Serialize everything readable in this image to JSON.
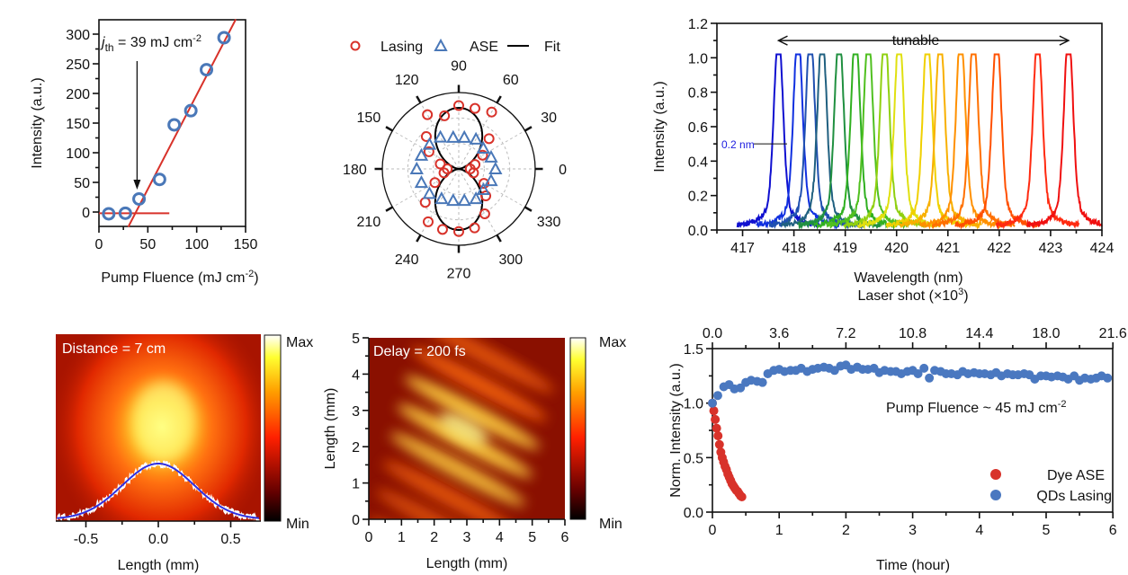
{
  "chart_data": [
    {
      "type": "scatter",
      "xlabel_main": "Pump Fluence (mJ cm",
      "xlabel_sup": "-2",
      "xlabel_end": ")",
      "ylabel": "Intensity (a.u.)",
      "xlim": [
        0,
        150
      ],
      "ylim": [
        -25,
        325
      ],
      "xticks": [
        0,
        50,
        100,
        150
      ],
      "yticks": [
        0,
        50,
        100,
        150,
        200,
        250,
        300
      ],
      "annotation": {
        "symbol": "j",
        "sub": "th",
        "text": " = 39 mJ cm",
        "sup": "-2"
      },
      "threshold": 39,
      "points": {
        "x": [
          10,
          27,
          41,
          62,
          77,
          94,
          110,
          128
        ],
        "y": [
          -3,
          -2,
          22,
          55,
          147,
          171,
          240,
          294
        ]
      },
      "fit_line": {
        "x": [
          30,
          140
        ],
        "y": [
          -25,
          325
        ]
      },
      "baseline": {
        "x": [
          0,
          72
        ],
        "y": [
          -2,
          -2
        ]
      },
      "colors": {
        "points": "#4a78b8",
        "fit": "#d8322a"
      }
    },
    {
      "type": "polar",
      "legend": [
        "Lasing",
        "ASE",
        "Fit"
      ],
      "angle_ticks": [
        0,
        30,
        60,
        90,
        120,
        150,
        180,
        210,
        240,
        270,
        300,
        330
      ],
      "lasing": {
        "angle": [
          0,
          15,
          30,
          45,
          60,
          75,
          90,
          105,
          120,
          135,
          150,
          165,
          180,
          195,
          210,
          225,
          240,
          255,
          270,
          285,
          300,
          315,
          330,
          345
        ],
        "r": [
          0.15,
          0.22,
          0.36,
          0.56,
          0.86,
          0.82,
          0.83,
          0.72,
          0.82,
          0.6,
          0.45,
          0.25,
          0.15,
          0.2,
          0.36,
          0.62,
          0.8,
          0.82,
          0.82,
          0.8,
          0.68,
          0.5,
          0.38,
          0.2
        ]
      },
      "ase": {
        "angle": [
          0,
          20,
          40,
          60,
          80,
          100,
          120,
          140,
          160,
          180,
          200,
          220,
          240,
          260,
          280,
          300,
          320,
          340
        ],
        "r": [
          0.48,
          0.45,
          0.42,
          0.45,
          0.42,
          0.42,
          0.48,
          0.5,
          0.52,
          0.55,
          0.52,
          0.5,
          0.45,
          0.42,
          0.42,
          0.45,
          0.42,
          0.45
        ]
      },
      "fit": {
        "function": "0.8 sin^2(theta)"
      },
      "colors": {
        "lasing": "#d8322a",
        "ase": "#4a78b8",
        "fit": "#000000"
      }
    },
    {
      "type": "line",
      "xlabel": "Wavelength (nm)",
      "ylabel": "Intensity (a.u.)",
      "xlim": [
        416.5,
        424
      ],
      "ylim": [
        0,
        1.2
      ],
      "xticks": [
        417,
        418,
        419,
        420,
        421,
        422,
        423,
        424
      ],
      "yticks": [
        "0.0",
        "0.2",
        "0.4",
        "0.6",
        "0.8",
        "1.0",
        "1.2"
      ],
      "annotation_tunable": "tunable",
      "annotation_width": "0.2 nm",
      "peaks": [
        417.7,
        418.08,
        418.32,
        418.55,
        418.88,
        419.2,
        419.45,
        419.77,
        420.05,
        420.6,
        420.85,
        421.25,
        421.5,
        421.95,
        422.75,
        423.35
      ],
      "fwhm_nm": 0.2,
      "colors": [
        "#1010d0",
        "#1030e0",
        "#2050b0",
        "#206080",
        "#209040",
        "#30b020",
        "#50c020",
        "#90d010",
        "#e0e010",
        "#f0d000",
        "#f8b000",
        "#ff9000",
        "#ff7000",
        "#ff5000",
        "#ff2a10",
        "#f01010"
      ]
    },
    {
      "type": "heatmap",
      "label": "Distance = 7 cm",
      "xlabel": "Length (mm)",
      "xlim": [
        -0.7,
        0.7
      ],
      "xticks": [
        "-0.5",
        "0.0",
        "0.5"
      ],
      "colorbar": {
        "max": "Max",
        "min": "Min"
      },
      "profile_fit": {
        "type": "gaussian",
        "sigma_mm": 0.25
      },
      "colors": {
        "fit": "#3030e0",
        "profile": "#ffffff"
      }
    },
    {
      "type": "heatmap",
      "label": "Delay = 200 fs",
      "xlabel": "Length (mm)",
      "ylabel": "Length (mm)",
      "xlim": [
        0,
        6
      ],
      "ylim": [
        0,
        5
      ],
      "xticks": [
        0,
        1,
        2,
        3,
        4,
        5,
        6
      ],
      "yticks": [
        0,
        1,
        2,
        3,
        4,
        5
      ],
      "colorbar": {
        "max": "Max",
        "min": "Min"
      }
    },
    {
      "type": "scatter",
      "xlabel": "Time (hour)",
      "ylabel": "Norm. Intensity (a.u.)",
      "x2label_main": "Laser shot (×10",
      "x2label_sup": "3",
      "x2label_end": ")",
      "xlim": [
        0,
        6
      ],
      "ylim": [
        0,
        1.5
      ],
      "xticks": [
        0,
        1,
        2,
        3,
        4,
        5,
        6
      ],
      "x2ticks": [
        "0.0",
        "3.6",
        "7.2",
        "10.8",
        "14.4",
        "18.0",
        "21.6"
      ],
      "yticks": [
        "0.0",
        "0.5",
        "1.0",
        "1.5"
      ],
      "annotation_main": "Pump Fluence ~ 45 mJ cm",
      "annotation_sup": "-2",
      "legend_position": "bottom-right",
      "series": [
        {
          "name": "Dye ASE",
          "color": "#d8322a",
          "x": [
            0,
            0.021,
            0.042,
            0.063,
            0.084,
            0.105,
            0.126,
            0.147,
            0.168,
            0.189,
            0.21,
            0.231,
            0.252,
            0.273,
            0.294,
            0.315,
            0.336,
            0.357,
            0.378,
            0.399,
            0.42,
            0.441
          ],
          "y": [
            1.0,
            0.93,
            0.85,
            0.77,
            0.7,
            0.62,
            0.55,
            0.5,
            0.46,
            0.42,
            0.39,
            0.35,
            0.32,
            0.29,
            0.26,
            0.24,
            0.22,
            0.2,
            0.19,
            0.17,
            0.15,
            0.14
          ]
        },
        {
          "name": "QDs Lasing",
          "color": "#4a78c0",
          "x": [
            0,
            0.08,
            0.17,
            0.25,
            0.33,
            0.42,
            0.5,
            0.58,
            0.67,
            0.75,
            0.83,
            0.92,
            1.0,
            1.08,
            1.17,
            1.25,
            1.33,
            1.42,
            1.5,
            1.58,
            1.67,
            1.75,
            1.83,
            1.92,
            2.0,
            2.08,
            2.17,
            2.25,
            2.33,
            2.42,
            2.5,
            2.58,
            2.67,
            2.75,
            2.83,
            2.92,
            3.0,
            3.08,
            3.17,
            3.25,
            3.33,
            3.42,
            3.5,
            3.58,
            3.67,
            3.75,
            3.83,
            3.92,
            4.0,
            4.08,
            4.17,
            4.25,
            4.33,
            4.42,
            4.5,
            4.58,
            4.67,
            4.75,
            4.83,
            4.92,
            5.0,
            5.08,
            5.17,
            5.25,
            5.33,
            5.42,
            5.5,
            5.58,
            5.67,
            5.75,
            5.83,
            5.92
          ],
          "y": [
            1.0,
            1.07,
            1.15,
            1.17,
            1.13,
            1.14,
            1.19,
            1.21,
            1.2,
            1.19,
            1.27,
            1.3,
            1.31,
            1.29,
            1.3,
            1.3,
            1.32,
            1.29,
            1.31,
            1.32,
            1.33,
            1.32,
            1.3,
            1.34,
            1.35,
            1.31,
            1.33,
            1.31,
            1.31,
            1.32,
            1.28,
            1.3,
            1.29,
            1.29,
            1.27,
            1.29,
            1.3,
            1.27,
            1.32,
            1.23,
            1.3,
            1.29,
            1.27,
            1.27,
            1.26,
            1.29,
            1.27,
            1.28,
            1.27,
            1.27,
            1.26,
            1.28,
            1.25,
            1.27,
            1.26,
            1.26,
            1.27,
            1.26,
            1.22,
            1.25,
            1.25,
            1.24,
            1.25,
            1.24,
            1.22,
            1.25,
            1.21,
            1.23,
            1.22,
            1.23,
            1.25,
            1.23
          ]
        }
      ]
    }
  ]
}
